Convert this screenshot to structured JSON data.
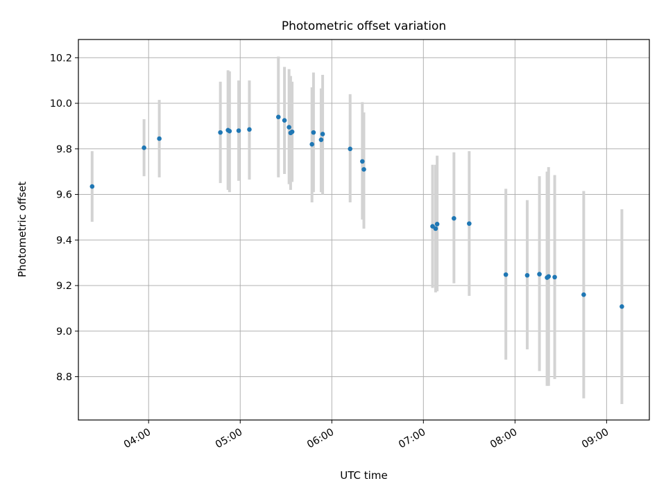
{
  "chart_data": {
    "type": "scatter",
    "title": "Photometric offset variation",
    "xlabel": "UTC time",
    "ylabel": "Photometric offset",
    "xlim": [
      "03:14",
      "09:28"
    ],
    "ylim": [
      8.61,
      10.28
    ],
    "grid": true,
    "x_ticks": [
      "04:00",
      "05:00",
      "06:00",
      "07:00",
      "08:00",
      "09:00"
    ],
    "y_ticks": [
      8.8,
      9.0,
      9.2,
      9.4,
      9.6,
      9.8,
      10.0,
      10.2
    ],
    "colors": {
      "point": "#1f77b4",
      "error_bar": "#d3d3d3",
      "grid": "#b0b0b0"
    },
    "points": [
      {
        "x": "03:23",
        "y": 9.635,
        "ylow": 9.48,
        "yhigh": 9.79
      },
      {
        "x": "03:57",
        "y": 9.805,
        "ylow": 9.68,
        "yhigh": 9.93
      },
      {
        "x": "04:07",
        "y": 9.845,
        "ylow": 9.675,
        "yhigh": 10.015
      },
      {
        "x": "04:47",
        "y": 9.872,
        "ylow": 9.65,
        "yhigh": 10.095
      },
      {
        "x": "04:52",
        "y": 9.882,
        "ylow": 9.62,
        "yhigh": 10.145
      },
      {
        "x": "04:53",
        "y": 9.878,
        "ylow": 9.61,
        "yhigh": 10.14
      },
      {
        "x": "04:59",
        "y": 9.88,
        "ylow": 9.66,
        "yhigh": 10.1
      },
      {
        "x": "05:06",
        "y": 9.885,
        "ylow": 9.665,
        "yhigh": 10.1
      },
      {
        "x": "05:25",
        "y": 9.94,
        "ylow": 9.675,
        "yhigh": 10.205
      },
      {
        "x": "05:29",
        "y": 9.925,
        "ylow": 9.69,
        "yhigh": 10.16
      },
      {
        "x": "05:32",
        "y": 9.895,
        "ylow": 9.645,
        "yhigh": 10.15
      },
      {
        "x": "05:33",
        "y": 9.87,
        "ylow": 9.62,
        "yhigh": 10.12
      },
      {
        "x": "05:34",
        "y": 9.875,
        "ylow": 9.655,
        "yhigh": 10.095
      },
      {
        "x": "05:47",
        "y": 9.82,
        "ylow": 9.565,
        "yhigh": 10.07
      },
      {
        "x": "05:48",
        "y": 9.872,
        "ylow": 9.61,
        "yhigh": 10.135
      },
      {
        "x": "05:53",
        "y": 9.84,
        "ylow": 9.61,
        "yhigh": 10.065
      },
      {
        "x": "05:54",
        "y": 9.865,
        "ylow": 9.6,
        "yhigh": 10.125
      },
      {
        "x": "06:12",
        "y": 9.8,
        "ylow": 9.565,
        "yhigh": 10.04
      },
      {
        "x": "06:20",
        "y": 9.745,
        "ylow": 9.49,
        "yhigh": 10.005
      },
      {
        "x": "06:21",
        "y": 9.71,
        "ylow": 9.45,
        "yhigh": 9.96
      },
      {
        "x": "07:06",
        "y": 9.46,
        "ylow": 9.19,
        "yhigh": 9.73
      },
      {
        "x": "07:08",
        "y": 9.45,
        "ylow": 9.17,
        "yhigh": 9.73
      },
      {
        "x": "07:09",
        "y": 9.47,
        "ylow": 9.175,
        "yhigh": 9.77
      },
      {
        "x": "07:20",
        "y": 9.495,
        "ylow": 9.21,
        "yhigh": 9.785
      },
      {
        "x": "07:30",
        "y": 9.472,
        "ylow": 9.155,
        "yhigh": 9.79
      },
      {
        "x": "07:54",
        "y": 9.248,
        "ylow": 8.875,
        "yhigh": 9.625
      },
      {
        "x": "08:08",
        "y": 9.245,
        "ylow": 8.92,
        "yhigh": 9.575
      },
      {
        "x": "08:16",
        "y": 9.25,
        "ylow": 8.825,
        "yhigh": 9.68
      },
      {
        "x": "08:21",
        "y": 9.235,
        "ylow": 8.76,
        "yhigh": 9.7
      },
      {
        "x": "08:22",
        "y": 9.24,
        "ylow": 8.76,
        "yhigh": 9.72
      },
      {
        "x": "08:26",
        "y": 9.237,
        "ylow": 8.79,
        "yhigh": 9.685
      },
      {
        "x": "08:45",
        "y": 9.16,
        "ylow": 8.705,
        "yhigh": 9.615
      },
      {
        "x": "09:10",
        "y": 9.108,
        "ylow": 8.68,
        "yhigh": 9.535
      }
    ]
  }
}
